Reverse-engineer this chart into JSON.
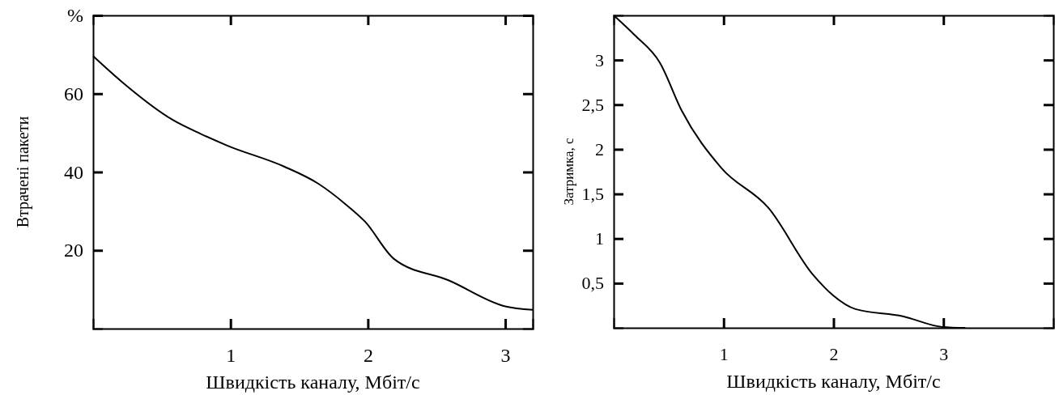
{
  "chart_data": [
    {
      "type": "line",
      "xlabel": "Швидкість каналу, Мбіт/с",
      "ylabel": "Втрачені пакети",
      "x": [
        0,
        0.21,
        0.58,
        0.78,
        0.98,
        1.39,
        1.64,
        1.84,
        1.98,
        2.19,
        2.59,
        3.0,
        3.2
      ],
      "series": [
        {
          "color": "#000000",
          "values": [
            69.6,
            63,
            53.3,
            49.8,
            46.7,
            41.4,
            37,
            31.7,
            27.3,
            17.8,
            12.3,
            5.7,
            4.8
          ]
        }
      ],
      "xlim": [
        0,
        3.2
      ],
      "ylim": [
        0,
        80
      ],
      "xticks": [
        1,
        2,
        3
      ],
      "yticks": [
        20,
        40,
        60,
        {
          "value": 80,
          "label": "%"
        }
      ],
      "grid": false
    },
    {
      "type": "line",
      "xlabel": "Швидкість каналу, Мбіт/с",
      "ylabel": "Затримка, с",
      "x": [
        0,
        0.19,
        0.42,
        0.62,
        0.98,
        1.41,
        1.81,
        1.99,
        2.2,
        2.63,
        2.99,
        3.2
      ],
      "series": [
        {
          "color": "#000000",
          "values": [
            3.5,
            3.28,
            2.97,
            2.43,
            1.79,
            1.34,
            0.6,
            0.37,
            0.21,
            0.13,
            0.01,
            0
          ]
        }
      ],
      "xlim": [
        0,
        4
      ],
      "ylim": [
        0,
        3.5
      ],
      "xticks": [
        1,
        2,
        3
      ],
      "yticks": [
        {
          "value": 0.5,
          "label": "0,5"
        },
        1,
        {
          "value": 1.5,
          "label": "1,5"
        },
        2,
        {
          "value": 2.5,
          "label": "2,5"
        },
        3
      ],
      "grid": false
    }
  ]
}
